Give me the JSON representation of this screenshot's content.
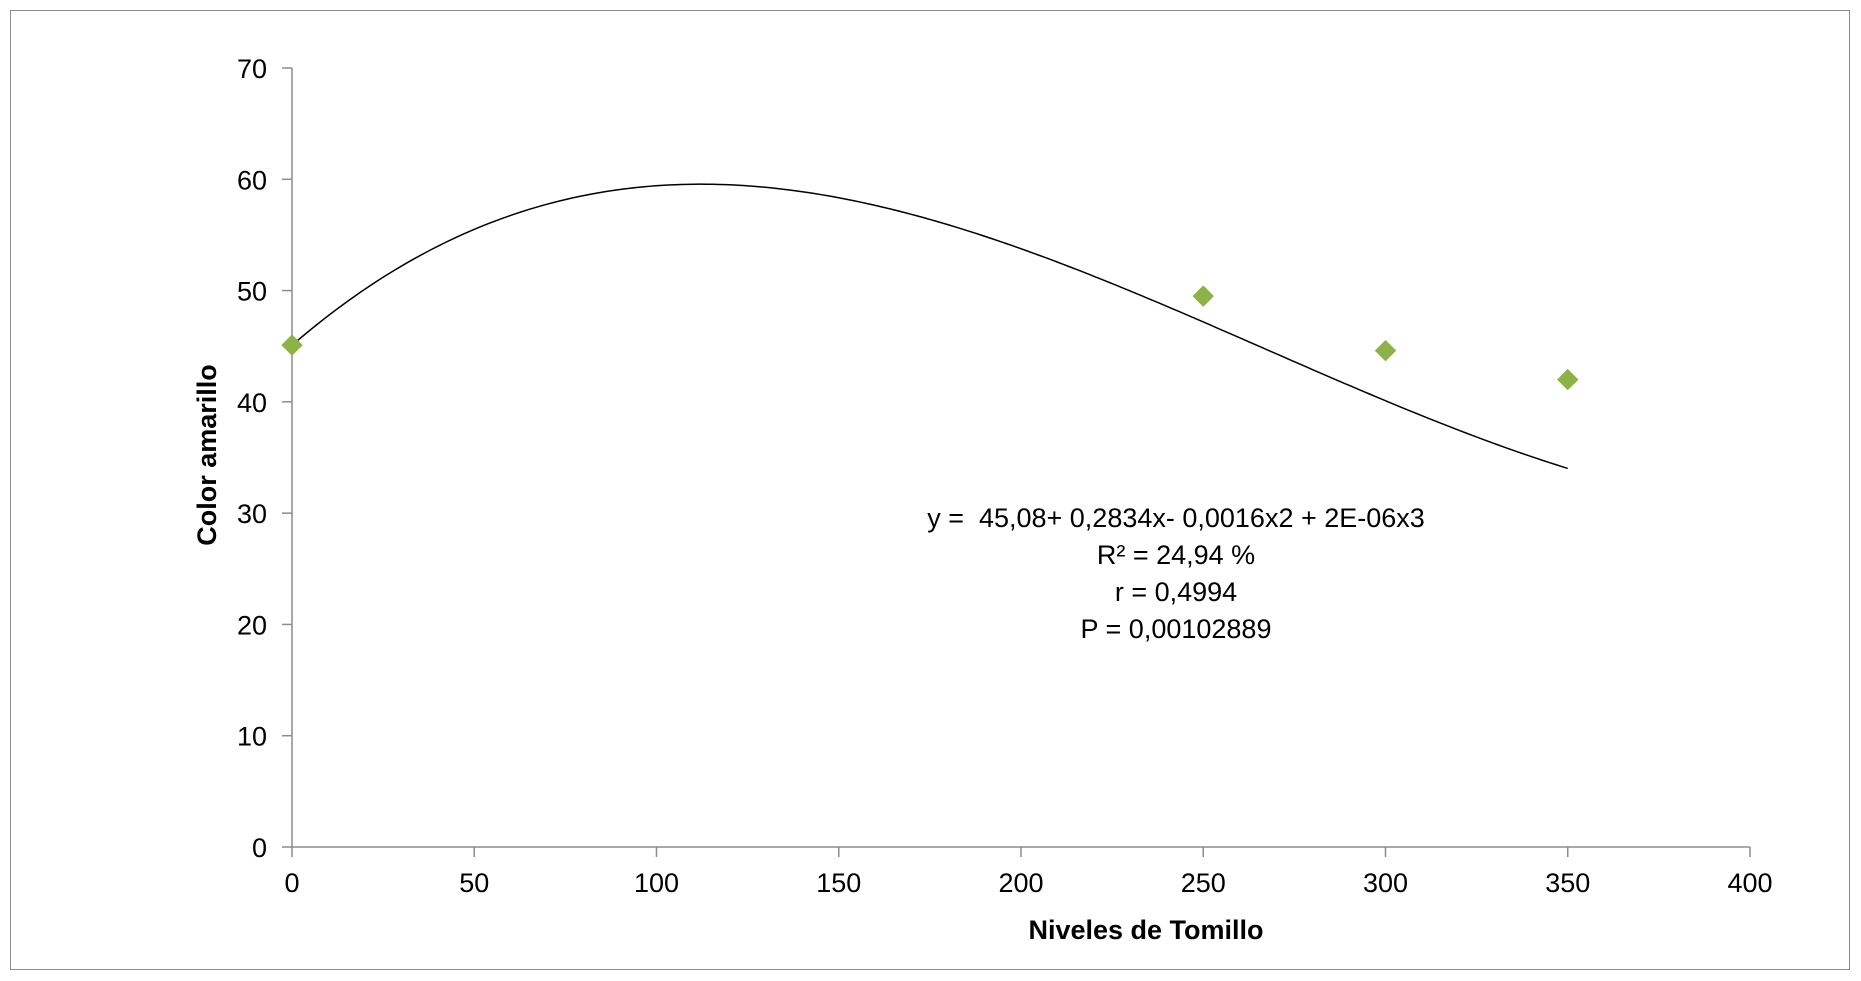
{
  "chart_data": {
    "type": "scatter",
    "xlabel": "Niveles de Tomillo",
    "ylabel": "Color amarillo",
    "xlim": [
      0,
      400
    ],
    "ylim": [
      0,
      70
    ],
    "x_ticks": [
      0,
      50,
      100,
      150,
      200,
      250,
      300,
      350,
      400
    ],
    "y_ticks": [
      0,
      10,
      20,
      30,
      40,
      50,
      60,
      70
    ],
    "grid": false,
    "legend": "none",
    "series": [
      {
        "points": [
          {
            "x": 0,
            "y": 45.1
          },
          {
            "x": 250,
            "y": 49.5
          },
          {
            "x": 300,
            "y": 44.6
          },
          {
            "x": 350,
            "y": 42.0
          }
        ],
        "marker": "diamond",
        "color": "#8db346"
      }
    ],
    "trendline": {
      "type": "polynomial",
      "order": 3,
      "coefficients": [
        45.08,
        0.2834,
        -0.0016,
        2e-06
      ],
      "x_range": [
        0,
        350
      ],
      "color": "#000000"
    },
    "annotations": [
      "y =  45,08+ 0,2834x- 0,0016x2 + 2E-06x3",
      "R² = 24,94 %",
      "r = 0,4994",
      "P = 0,00102889"
    ]
  }
}
